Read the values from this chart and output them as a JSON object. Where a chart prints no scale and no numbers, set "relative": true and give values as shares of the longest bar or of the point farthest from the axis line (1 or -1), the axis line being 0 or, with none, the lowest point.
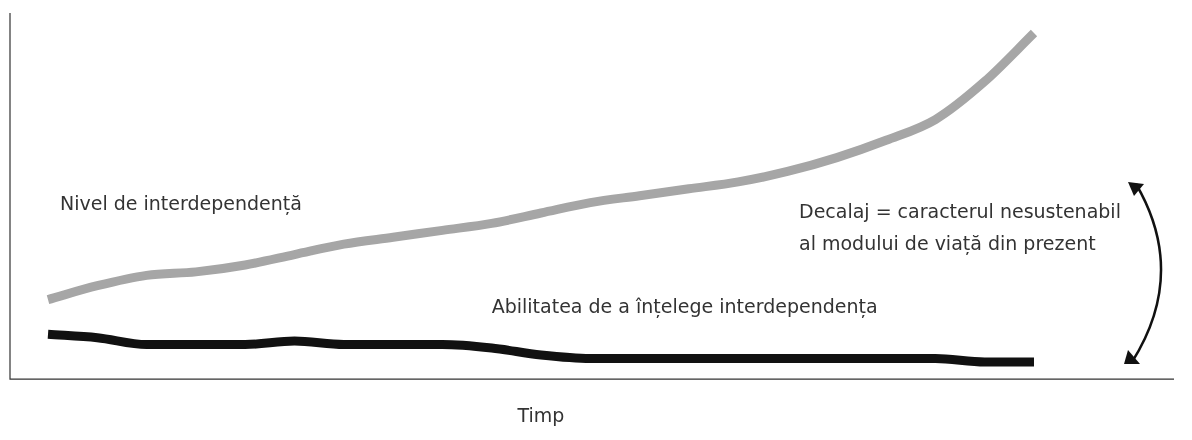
{
  "chart_data": {
    "type": "line",
    "relative": true,
    "xlabel": "Timp",
    "categories": [
      null,
      null,
      null,
      null,
      null,
      null,
      null,
      null,
      null,
      null,
      null,
      null,
      null,
      null,
      null,
      null,
      null,
      null,
      null,
      null,
      null
    ],
    "series": [
      {
        "name": "Nivel de interdependență",
        "color": "#a6a6a6",
        "values": [
          0.23,
          0.27,
          0.3,
          0.31,
          0.33,
          0.36,
          0.39,
          0.41,
          0.43,
          0.45,
          0.48,
          0.51,
          0.53,
          0.55,
          0.57,
          0.6,
          0.64,
          0.69,
          0.75,
          0.86,
          1.0
        ]
      },
      {
        "name": "Abilitatea de a înțelege interdependența",
        "color": "#111111",
        "values": [
          0.13,
          0.12,
          0.1,
          0.1,
          0.1,
          0.11,
          0.1,
          0.1,
          0.1,
          0.09,
          0.07,
          0.06,
          0.06,
          0.06,
          0.06,
          0.06,
          0.06,
          0.06,
          0.06,
          0.05,
          0.05
        ]
      }
    ],
    "annotations": [
      "Decalaj = caracterul nesustenabil\nal modului de viață din prezent"
    ],
    "grid": false,
    "legend": false,
    "marker": "none",
    "line_style": "solid"
  }
}
